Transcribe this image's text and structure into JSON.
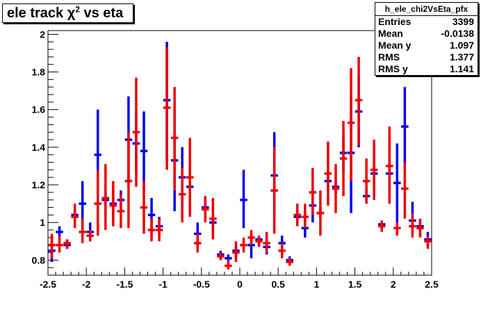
{
  "title": {
    "prefix": "ele track ",
    "chi": "χ",
    "sup": "2",
    "suffix": " vs eta"
  },
  "stats": {
    "name": "h_ele_chi2VsEta_pfx",
    "rows": [
      {
        "label": "Entries",
        "value": "3399"
      },
      {
        "label": "Mean",
        "value": "-0.0138"
      },
      {
        "label": "Mean y",
        "value": "1.097"
      },
      {
        "label": "RMS",
        "value": "1.377"
      },
      {
        "label": "RMS y",
        "value": "1.141"
      }
    ]
  },
  "colors": {
    "blue": "#0000ee",
    "red": "#ee0000"
  },
  "chart_data": {
    "type": "scatter",
    "xlim": [
      -2.5,
      2.5
    ],
    "ylim": [
      0.72,
      2.02
    ],
    "x_ticks": [
      -2.5,
      -2,
      -1.5,
      -1,
      -0.5,
      0,
      0.5,
      1,
      1.5,
      2,
      2.5
    ],
    "x_tick_labels": [
      "-2.5",
      "-2",
      "-1.5",
      "-1",
      "-0.5",
      "0",
      "0.5",
      "1",
      "1.5",
      "2",
      "2.5"
    ],
    "y_ticks": [
      0.8,
      1,
      1.2,
      1.4,
      1.6,
      1.8,
      2
    ],
    "y_tick_labels": [
      "0.8",
      "1",
      "1.2",
      "1.4",
      "1.6",
      "1.8",
      "2"
    ],
    "series": [
      {
        "color": "#0000ee",
        "points": [
          {
            "x": -2.45,
            "y": 0.85,
            "lo": 0.79,
            "hi": 0.9
          },
          {
            "x": -2.35,
            "y": 0.95,
            "lo": 0.92,
            "hi": 0.98
          },
          {
            "x": -2.25,
            "y": 0.88,
            "lo": 0.86,
            "hi": 0.91
          },
          {
            "x": -2.15,
            "y": 1.04,
            "lo": 1.01,
            "hi": 1.07
          },
          {
            "x": -2.05,
            "y": 1.1,
            "lo": 0.98,
            "hi": 1.22
          },
          {
            "x": -1.95,
            "y": 0.95,
            "lo": 0.9,
            "hi": 1.0
          },
          {
            "x": -1.85,
            "y": 1.36,
            "lo": 1.12,
            "hi": 1.6
          },
          {
            "x": -1.75,
            "y": 1.12,
            "lo": 1.03,
            "hi": 1.2
          },
          {
            "x": -1.65,
            "y": 1.1,
            "lo": 1.02,
            "hi": 1.17
          },
          {
            "x": -1.55,
            "y": 1.12,
            "lo": 1.07,
            "hi": 1.17
          },
          {
            "x": -1.45,
            "y": 1.44,
            "lo": 1.21,
            "hi": 1.67
          },
          {
            "x": -1.35,
            "y": 1.42,
            "lo": 1.26,
            "hi": 1.58
          },
          {
            "x": -1.25,
            "y": 1.38,
            "lo": 1.16,
            "hi": 1.59
          },
          {
            "x": -1.15,
            "y": 1.04,
            "lo": 0.94,
            "hi": 1.13
          },
          {
            "x": -1.05,
            "y": 0.98,
            "lo": 0.93,
            "hi": 1.03
          },
          {
            "x": -0.95,
            "y": 1.65,
            "lo": 1.33,
            "hi": 1.96
          },
          {
            "x": -0.85,
            "y": 1.33,
            "lo": 1.06,
            "hi": 1.6
          },
          {
            "x": -0.75,
            "y": 1.24,
            "lo": 1.08,
            "hi": 1.4
          },
          {
            "x": -0.65,
            "y": 1.19,
            "lo": 1.11,
            "hi": 1.27
          },
          {
            "x": -0.55,
            "y": 0.94,
            "lo": 0.89,
            "hi": 1.0
          },
          {
            "x": -0.45,
            "y": 1.08,
            "lo": 1.02,
            "hi": 1.14
          },
          {
            "x": -0.35,
            "y": 1.0,
            "lo": 0.96,
            "hi": 1.04
          },
          {
            "x": -0.25,
            "y": 0.83,
            "lo": 0.8,
            "hi": 0.85
          },
          {
            "x": -0.15,
            "y": 0.81,
            "lo": 0.78,
            "hi": 0.83
          },
          {
            "x": -0.05,
            "y": 0.85,
            "lo": 0.82,
            "hi": 0.88
          },
          {
            "x": 0.05,
            "y": 1.12,
            "lo": 0.97,
            "hi": 1.28
          },
          {
            "x": 0.15,
            "y": 0.88,
            "lo": 0.81,
            "hi": 0.94
          },
          {
            "x": 0.25,
            "y": 0.91,
            "lo": 0.88,
            "hi": 0.93
          },
          {
            "x": 0.35,
            "y": 0.87,
            "lo": 0.83,
            "hi": 0.91
          },
          {
            "x": 0.45,
            "y": 1.25,
            "lo": 1.03,
            "hi": 1.48
          },
          {
            "x": 0.55,
            "y": 0.89,
            "lo": 0.86,
            "hi": 0.93
          },
          {
            "x": 0.65,
            "y": 0.8,
            "lo": 0.78,
            "hi": 0.82
          },
          {
            "x": 0.75,
            "y": 1.03,
            "lo": 0.99,
            "hi": 1.07
          },
          {
            "x": 0.85,
            "y": 0.97,
            "lo": 0.92,
            "hi": 1.02
          },
          {
            "x": 0.95,
            "y": 1.09,
            "lo": 1.0,
            "hi": 1.18
          },
          {
            "x": 1.05,
            "y": 1.05,
            "lo": 1.02,
            "hi": 1.08
          },
          {
            "x": 1.15,
            "y": 1.22,
            "lo": 1.17,
            "hi": 1.27
          },
          {
            "x": 1.25,
            "y": 1.19,
            "lo": 1.15,
            "hi": 1.22
          },
          {
            "x": 1.35,
            "y": 1.37,
            "lo": 1.27,
            "hi": 1.47
          },
          {
            "x": 1.45,
            "y": 1.37,
            "lo": 1.05,
            "hi": 1.68
          },
          {
            "x": 1.55,
            "y": 1.59,
            "lo": 1.4,
            "hi": 1.78
          },
          {
            "x": 1.65,
            "y": 1.14,
            "lo": 1.11,
            "hi": 1.18
          },
          {
            "x": 1.75,
            "y": 1.26,
            "lo": 1.2,
            "hi": 1.32
          },
          {
            "x": 1.85,
            "y": 0.99,
            "lo": 0.96,
            "hi": 1.01
          },
          {
            "x": 1.95,
            "y": 1.26,
            "lo": 1.16,
            "hi": 1.35
          },
          {
            "x": 2.05,
            "y": 1.21,
            "lo": 1.0,
            "hi": 1.42
          },
          {
            "x": 2.15,
            "y": 1.51,
            "lo": 1.3,
            "hi": 1.72
          },
          {
            "x": 2.25,
            "y": 1.01,
            "lo": 0.97,
            "hi": 1.11
          },
          {
            "x": 2.35,
            "y": 0.98,
            "lo": 0.93,
            "hi": 1.02
          },
          {
            "x": 2.45,
            "y": 0.91,
            "lo": 0.87,
            "hi": 0.95
          }
        ]
      },
      {
        "color": "#ee0000",
        "points": [
          {
            "x": -2.45,
            "y": 0.88,
            "lo": 0.81,
            "hi": 0.94
          },
          {
            "x": -2.35,
            "y": 0.88,
            "lo": 0.84,
            "hi": 0.93
          },
          {
            "x": -2.25,
            "y": 0.89,
            "lo": 0.86,
            "hi": 0.91
          },
          {
            "x": -2.15,
            "y": 1.03,
            "lo": 0.97,
            "hi": 1.1
          },
          {
            "x": -2.05,
            "y": 0.95,
            "lo": 0.89,
            "hi": 1.02
          },
          {
            "x": -1.95,
            "y": 0.93,
            "lo": 0.9,
            "hi": 0.96
          },
          {
            "x": -1.85,
            "y": 1.1,
            "lo": 0.93,
            "hi": 1.28
          },
          {
            "x": -1.75,
            "y": 1.13,
            "lo": 0.96,
            "hi": 1.31
          },
          {
            "x": -1.65,
            "y": 1.09,
            "lo": 0.98,
            "hi": 1.22
          },
          {
            "x": -1.55,
            "y": 1.06,
            "lo": 0.97,
            "hi": 1.15
          },
          {
            "x": -1.45,
            "y": 1.22,
            "lo": 0.97,
            "hi": 1.48
          },
          {
            "x": -1.35,
            "y": 1.48,
            "lo": 1.19,
            "hi": 1.77
          },
          {
            "x": -1.25,
            "y": 1.08,
            "lo": 0.94,
            "hi": 1.22
          },
          {
            "x": -1.15,
            "y": 0.96,
            "lo": 0.9,
            "hi": 1.02
          },
          {
            "x": -1.05,
            "y": 0.96,
            "lo": 0.9,
            "hi": 1.02
          },
          {
            "x": -0.95,
            "y": 1.61,
            "lo": 1.28,
            "hi": 1.93
          },
          {
            "x": -0.85,
            "y": 1.45,
            "lo": 1.17,
            "hi": 1.72
          },
          {
            "x": -0.75,
            "y": 1.15,
            "lo": 1.0,
            "hi": 1.29
          },
          {
            "x": -0.65,
            "y": 1.24,
            "lo": 1.03,
            "hi": 1.45
          },
          {
            "x": -0.55,
            "y": 0.89,
            "lo": 0.84,
            "hi": 0.94
          },
          {
            "x": -0.45,
            "y": 1.07,
            "lo": 1.0,
            "hi": 1.14
          },
          {
            "x": -0.35,
            "y": 1.02,
            "lo": 0.91,
            "hi": 1.13
          },
          {
            "x": -0.25,
            "y": 0.82,
            "lo": 0.8,
            "hi": 0.84
          },
          {
            "x": -0.15,
            "y": 0.77,
            "lo": 0.75,
            "hi": 0.8
          },
          {
            "x": -0.05,
            "y": 0.84,
            "lo": 0.79,
            "hi": 0.9
          },
          {
            "x": 0.05,
            "y": 0.88,
            "lo": 0.84,
            "hi": 0.92
          },
          {
            "x": 0.15,
            "y": 0.92,
            "lo": 0.88,
            "hi": 0.96
          },
          {
            "x": 0.25,
            "y": 0.9,
            "lo": 0.87,
            "hi": 0.93
          },
          {
            "x": 0.35,
            "y": 0.89,
            "lo": 0.84,
            "hi": 0.95
          },
          {
            "x": 0.45,
            "y": 1.17,
            "lo": 0.94,
            "hi": 1.4
          },
          {
            "x": 0.55,
            "y": 0.85,
            "lo": 0.81,
            "hi": 0.89
          },
          {
            "x": 0.65,
            "y": 0.79,
            "lo": 0.77,
            "hi": 0.81
          },
          {
            "x": 0.75,
            "y": 1.04,
            "lo": 0.98,
            "hi": 1.1
          },
          {
            "x": 0.85,
            "y": 1.03,
            "lo": 0.97,
            "hi": 1.1
          },
          {
            "x": 0.95,
            "y": 1.16,
            "lo": 1.04,
            "hi": 1.29
          },
          {
            "x": 1.05,
            "y": 1.05,
            "lo": 0.93,
            "hi": 1.17
          },
          {
            "x": 1.15,
            "y": 1.26,
            "lo": 1.09,
            "hi": 1.43
          },
          {
            "x": 1.25,
            "y": 1.18,
            "lo": 1.05,
            "hi": 1.31
          },
          {
            "x": 1.35,
            "y": 1.34,
            "lo": 1.14,
            "hi": 1.54
          },
          {
            "x": 1.45,
            "y": 1.53,
            "lo": 1.22,
            "hi": 1.82
          },
          {
            "x": 1.55,
            "y": 1.65,
            "lo": 1.41,
            "hi": 1.88
          },
          {
            "x": 1.65,
            "y": 1.22,
            "lo": 1.1,
            "hi": 1.34
          },
          {
            "x": 1.75,
            "y": 1.28,
            "lo": 1.12,
            "hi": 1.44
          },
          {
            "x": 1.85,
            "y": 0.98,
            "lo": 0.95,
            "hi": 1.01
          },
          {
            "x": 1.95,
            "y": 1.3,
            "lo": 1.1,
            "hi": 1.51
          },
          {
            "x": 2.05,
            "y": 0.97,
            "lo": 0.93,
            "hi": 1.0
          },
          {
            "x": 2.15,
            "y": 1.18,
            "lo": 1.02,
            "hi": 1.32
          },
          {
            "x": 2.25,
            "y": 0.98,
            "lo": 0.92,
            "hi": 1.05
          },
          {
            "x": 2.35,
            "y": 0.97,
            "lo": 0.92,
            "hi": 1.02
          },
          {
            "x": 2.45,
            "y": 0.9,
            "lo": 0.86,
            "hi": 0.93
          }
        ]
      }
    ]
  }
}
